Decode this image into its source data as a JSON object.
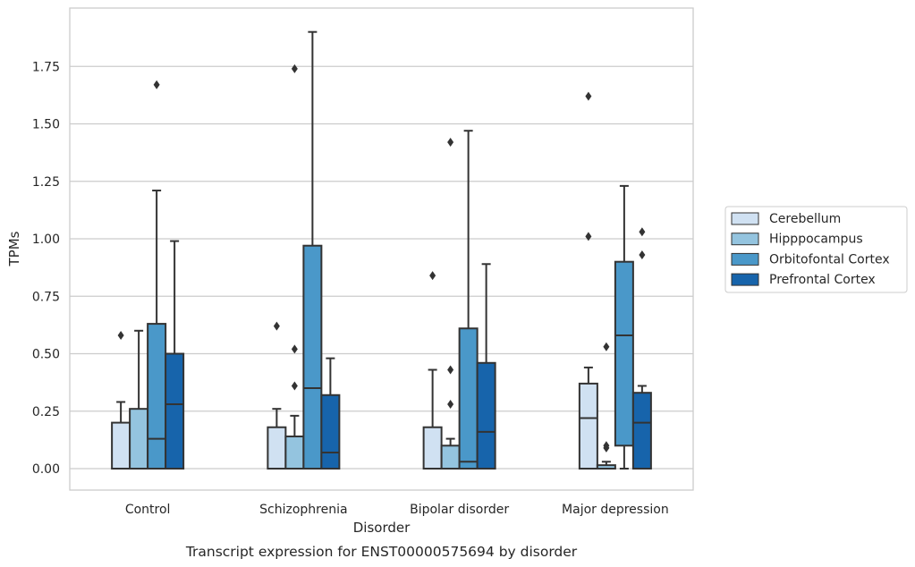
{
  "caption": "Transcript expression for ENST00000575694 by disorder",
  "chart_data": {
    "type": "box",
    "title": "",
    "xlabel": "Disorder",
    "ylabel": "TPMs",
    "ylim": [
      -0.09,
      1.99
    ],
    "yticks": [
      0.0,
      0.25,
      0.5,
      0.75,
      1.0,
      1.25,
      1.5,
      1.75
    ],
    "ytick_labels": [
      "0.00",
      "0.25",
      "0.50",
      "0.75",
      "1.00",
      "1.25",
      "1.50",
      "1.75"
    ],
    "grid": "horizontal",
    "legend_position": "right",
    "categories": [
      "Control",
      "Schizophrenia",
      "Bipolar disorder",
      "Major depression"
    ],
    "series": [
      {
        "name": "Cerebellum",
        "color": "#d0e1f2",
        "boxes": [
          {
            "whisker_low": 0.0,
            "q1": 0.0,
            "median": 0.0,
            "q3": 0.2,
            "whisker_high": 0.29,
            "outliers": [
              0.58
            ]
          },
          {
            "whisker_low": 0.0,
            "q1": 0.0,
            "median": 0.0,
            "q3": 0.18,
            "whisker_high": 0.26,
            "outliers": [
              0.62
            ]
          },
          {
            "whisker_low": 0.0,
            "q1": 0.0,
            "median": 0.0,
            "q3": 0.18,
            "whisker_high": 0.43,
            "outliers": [
              0.84
            ]
          },
          {
            "whisker_low": 0.0,
            "q1": 0.0,
            "median": 0.22,
            "q3": 0.37,
            "whisker_high": 0.44,
            "outliers": [
              1.01,
              1.62
            ]
          }
        ]
      },
      {
        "name": "Hipppocampus",
        "color": "#94c4df",
        "boxes": [
          {
            "whisker_low": 0.0,
            "q1": 0.0,
            "median": 0.0,
            "q3": 0.26,
            "whisker_high": 0.6,
            "outliers": []
          },
          {
            "whisker_low": 0.0,
            "q1": 0.0,
            "median": 0.0,
            "q3": 0.14,
            "whisker_high": 0.23,
            "outliers": [
              0.36,
              0.52,
              1.74
            ]
          },
          {
            "whisker_low": 0.0,
            "q1": 0.0,
            "median": 0.0,
            "q3": 0.1,
            "whisker_high": 0.13,
            "outliers": [
              0.28,
              0.43,
              1.42
            ]
          },
          {
            "whisker_low": 0.0,
            "q1": 0.0,
            "median": 0.0,
            "q3": 0.015,
            "whisker_high": 0.03,
            "outliers": [
              0.09,
              0.1,
              0.53
            ]
          }
        ]
      },
      {
        "name": "Orbitofontal Cortex",
        "color": "#4a98c9",
        "boxes": [
          {
            "whisker_low": 0.0,
            "q1": 0.0,
            "median": 0.13,
            "q3": 0.63,
            "whisker_high": 1.21,
            "outliers": [
              1.67
            ]
          },
          {
            "whisker_low": 0.0,
            "q1": 0.0,
            "median": 0.35,
            "q3": 0.97,
            "whisker_high": 1.9,
            "outliers": []
          },
          {
            "whisker_low": 0.0,
            "q1": 0.0,
            "median": 0.03,
            "q3": 0.61,
            "whisker_high": 1.47,
            "outliers": []
          },
          {
            "whisker_low": 0.0,
            "q1": 0.1,
            "median": 0.58,
            "q3": 0.9,
            "whisker_high": 1.23,
            "outliers": []
          }
        ]
      },
      {
        "name": "Prefrontal Cortex",
        "color": "#1764ab",
        "boxes": [
          {
            "whisker_low": 0.0,
            "q1": 0.0,
            "median": 0.28,
            "q3": 0.5,
            "whisker_high": 0.99,
            "outliers": []
          },
          {
            "whisker_low": 0.0,
            "q1": 0.0,
            "median": 0.07,
            "q3": 0.32,
            "whisker_high": 0.48,
            "outliers": []
          },
          {
            "whisker_low": 0.0,
            "q1": 0.0,
            "median": 0.16,
            "q3": 0.46,
            "whisker_high": 0.89,
            "outliers": []
          },
          {
            "whisker_low": 0.0,
            "q1": 0.0,
            "median": 0.2,
            "q3": 0.33,
            "whisker_high": 0.36,
            "outliers": [
              0.93,
              1.03
            ]
          }
        ]
      }
    ]
  }
}
